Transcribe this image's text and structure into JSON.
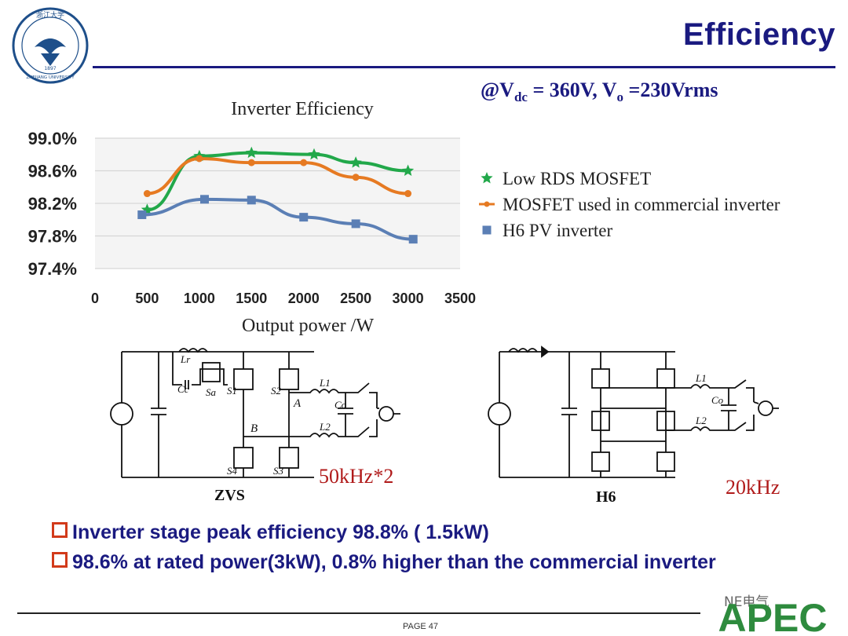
{
  "header": {
    "title": "Efficiency",
    "logo_text_top": "浙江大学",
    "logo_year": "1897",
    "logo_text_bottom": "ZHEJIANG UNIVERSITY",
    "accent_color": "#1a1a80"
  },
  "condition": {
    "prefix": "@V",
    "vdc_sub": "dc",
    "mid": " = 360V, V",
    "vo_sub": "o",
    "suffix": " =230Vrms"
  },
  "chart_data": {
    "type": "line",
    "title": "Inverter Efficiency",
    "xlabel": "Output power /W",
    "ylabel": "",
    "xlim": [
      0,
      3500
    ],
    "ylim": [
      97.4,
      99.0
    ],
    "x_ticks": [
      0,
      500,
      1000,
      1500,
      2000,
      2500,
      3000,
      3500
    ],
    "y_ticks": [
      "99.0%",
      "98.6%",
      "98.2%",
      "97.8%",
      "97.4%"
    ],
    "legend_position": "right",
    "grid": true,
    "series": [
      {
        "name": "Low RDS MOSFET",
        "marker": "star",
        "color": "#22a84a",
        "x": [
          500,
          1000,
          1500,
          2100,
          2500,
          3000
        ],
        "y": [
          98.12,
          98.78,
          98.82,
          98.8,
          98.7,
          98.6
        ]
      },
      {
        "name": "MOSFET used in commercial inverter",
        "marker": "dash",
        "color": "#e67a22",
        "x": [
          500,
          1000,
          1500,
          2000,
          2500,
          3000
        ],
        "y": [
          98.32,
          98.75,
          98.7,
          98.7,
          98.52,
          98.32
        ]
      },
      {
        "name": "H6 PV inverter",
        "marker": "square",
        "color": "#5b7fb5",
        "x": [
          450,
          1050,
          1500,
          2000,
          2500,
          3050
        ],
        "y": [
          98.06,
          98.25,
          98.24,
          98.03,
          97.95,
          97.76
        ]
      }
    ]
  },
  "circuits": {
    "zvs": {
      "label": "ZVS",
      "frequency": "50kHz*2",
      "components": [
        "Lr",
        "Cc",
        "Sa",
        "S1",
        "S2",
        "S3",
        "S4",
        "L1",
        "L2",
        "Co",
        "A",
        "B"
      ]
    },
    "h6": {
      "label": "H6",
      "frequency": "20kHz",
      "components": [
        "L1",
        "L2",
        "Co"
      ]
    },
    "freq_color": "#b01a1a"
  },
  "bullets": [
    "Inverter stage peak efficiency 98.8% ( 1.5kW)",
    "98.6% at rated power(3kW), 0.8% higher than the commercial inverter"
  ],
  "footer": {
    "page": "PAGE 47",
    "wechat": "NE电气",
    "brand": "APEC"
  }
}
